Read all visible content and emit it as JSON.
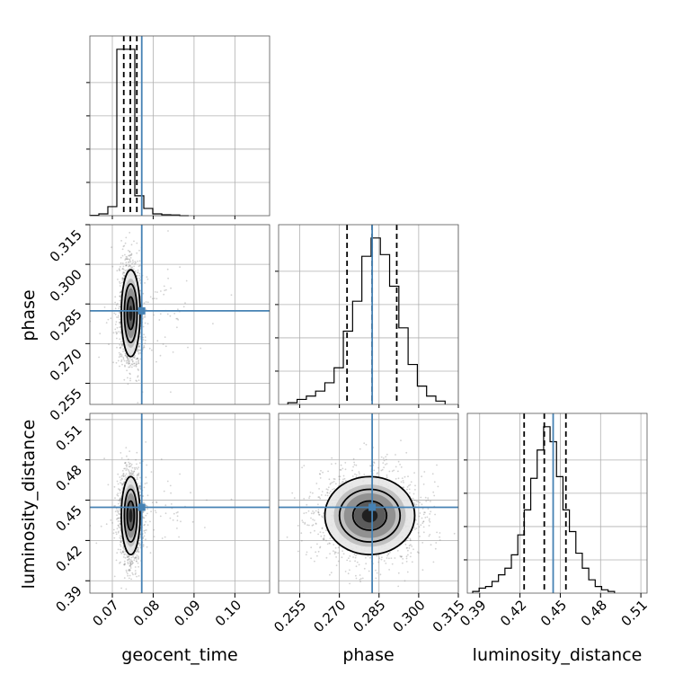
{
  "chart_data": {
    "type": "corner",
    "grid": true,
    "colors": {
      "truth": "#4682b4",
      "hist": "#000000",
      "scatter": "#7f7f7f"
    },
    "parameters": [
      {
        "name": "geocent_time",
        "label": "geocent_time",
        "range": [
          0.0645,
          0.1085
        ],
        "ticks": [
          0.07,
          0.08,
          0.09,
          0.1
        ],
        "tick_labels": [
          "0.07",
          "0.08",
          "0.09",
          "0.10"
        ],
        "truth": 0.0772,
        "quantiles": [
          0.0728,
          0.0744,
          0.076
        ]
      },
      {
        "name": "phase",
        "label": "phase",
        "range": [
          0.247,
          0.315
        ],
        "ticks": [
          0.255,
          0.27,
          0.285,
          0.3,
          0.315
        ],
        "tick_labels": [
          "0.255",
          "0.270",
          "0.285",
          "0.300",
          "0.315"
        ],
        "truth": 0.2824,
        "quantiles": [
          0.2729,
          0.2824,
          0.2917
        ]
      },
      {
        "name": "luminosity_distance",
        "label": "luminosity_distance",
        "range": [
          0.3808,
          0.5146
        ],
        "ticks": [
          0.39,
          0.42,
          0.45,
          0.48,
          0.51
        ],
        "tick_labels": [
          "0.39",
          "0.42",
          "0.45",
          "0.48",
          "0.51"
        ],
        "truth": 0.4447,
        "quantiles": [
          0.4231,
          0.4381,
          0.4542
        ]
      }
    ],
    "histograms": {
      "geocent_time": {
        "bin_edges": [
          0.0645,
          0.0667,
          0.0689,
          0.0711,
          0.0733,
          0.0755,
          0.0777,
          0.0799,
          0.0821,
          0.0843,
          0.0865,
          0.0887
        ],
        "density": [
          0.002,
          0.01,
          0.05,
          0.92,
          0.92,
          0.11,
          0.04,
          0.01,
          0.005,
          0.004,
          0.0
        ]
      },
      "phase": {
        "bin_edges": [
          0.2505,
          0.254,
          0.2575,
          0.261,
          0.2645,
          0.268,
          0.2715,
          0.275,
          0.2785,
          0.282,
          0.2855,
          0.289,
          0.2925,
          0.296,
          0.2995,
          0.303,
          0.3065,
          0.31
        ],
        "density": [
          0.01,
          0.03,
          0.05,
          0.08,
          0.13,
          0.22,
          0.44,
          0.62,
          0.89,
          1.0,
          0.9,
          0.71,
          0.46,
          0.24,
          0.11,
          0.05,
          0.02
        ]
      },
      "luminosity_distance": {
        "bin_edges": [
          0.3848,
          0.3896,
          0.3944,
          0.3992,
          0.404,
          0.4088,
          0.4136,
          0.4184,
          0.4232,
          0.428,
          0.4328,
          0.4376,
          0.4424,
          0.4472,
          0.452,
          0.4568,
          0.4616,
          0.4664,
          0.4712,
          0.476,
          0.4808,
          0.4856,
          0.4904
        ],
        "density": [
          0.01,
          0.03,
          0.04,
          0.07,
          0.11,
          0.15,
          0.23,
          0.35,
          0.5,
          0.69,
          0.86,
          1.0,
          0.91,
          0.7,
          0.5,
          0.37,
          0.24,
          0.15,
          0.08,
          0.04,
          0.02,
          0.01
        ]
      }
    },
    "joint": [
      {
        "x": "geocent_time",
        "y": "phase",
        "center": [
          0.0745,
          0.2815
        ],
        "sd": [
          0.00115,
          0.0082
        ]
      },
      {
        "x": "geocent_time",
        "y": "luminosity_distance",
        "center": [
          0.0745,
          0.4385
        ],
        "sd": [
          0.00115,
          0.0145
        ]
      },
      {
        "x": "phase",
        "y": "luminosity_distance",
        "center": [
          0.2815,
          0.4385
        ],
        "sd": [
          0.0085,
          0.0145
        ]
      }
    ]
  }
}
